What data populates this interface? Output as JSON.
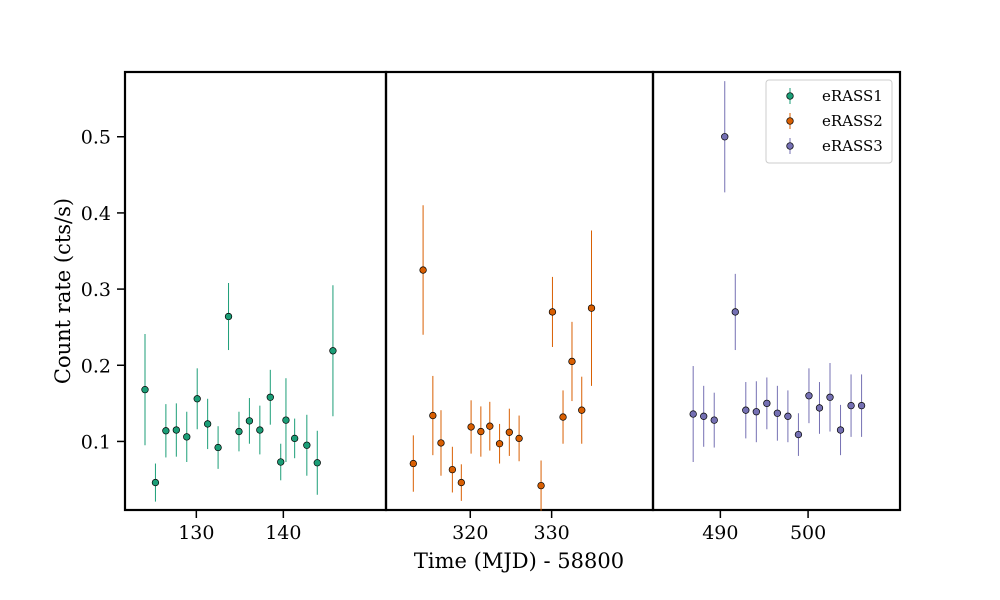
{
  "chart_data": {
    "type": "scatter",
    "xlabel": "Time (MJD) - 58800",
    "ylabel": "Count rate (cts/s)",
    "ylim": [
      0.01,
      0.585
    ],
    "yticks": [
      0.1,
      0.2,
      0.3,
      0.4,
      0.5
    ],
    "yticklabels": [
      "0.1",
      "0.2",
      "0.3",
      "0.4",
      "0.5"
    ],
    "grid": false,
    "legend_position": "top-right",
    "panels": [
      {
        "xlim": [
          124.1,
          149.5
        ],
        "xticks": [
          130,
          140
        ],
        "xticklabels": [
          "130",
          "140"
        ]
      },
      {
        "xlim": [
          312.1,
          340.0
        ],
        "xticks": [
          320,
          330
        ],
        "xticklabels": [
          "320",
          "330"
        ]
      },
      {
        "xlim": [
          484.6,
          508.2
        ],
        "xticks": [
          490,
          500
        ],
        "xticklabels": [
          "490",
          "500"
        ]
      }
    ],
    "series": [
      {
        "name": "eRASS1",
        "color": "#1b9e77",
        "panel": 0,
        "x": [
          124.1,
          125.3,
          126.5,
          127.7,
          128.9,
          130.1,
          131.3,
          132.5,
          133.7,
          134.9,
          136.1,
          137.3,
          138.5,
          139.7,
          140.3,
          141.3,
          142.7,
          143.9,
          145.7
        ],
        "y": [
          0.168,
          0.046,
          0.114,
          0.115,
          0.106,
          0.156,
          0.123,
          0.092,
          0.264,
          0.113,
          0.127,
          0.115,
          0.158,
          0.073,
          0.128,
          0.104,
          0.095,
          0.072,
          0.219
        ],
        "yerr": [
          0.073,
          0.025,
          0.035,
          0.035,
          0.033,
          0.04,
          0.033,
          0.028,
          0.044,
          0.026,
          0.03,
          0.032,
          0.036,
          0.024,
          0.055,
          0.026,
          0.04,
          0.042,
          0.086
        ]
      },
      {
        "name": "eRASS2",
        "color": "#d95f02",
        "panel": 1,
        "x": [
          313.0,
          314.2,
          315.4,
          316.4,
          317.8,
          318.9,
          320.1,
          321.3,
          322.4,
          323.6,
          324.8,
          326.0,
          328.7,
          330.1,
          331.4,
          332.5,
          333.7,
          334.9
        ],
        "y": [
          0.071,
          0.325,
          0.134,
          0.098,
          0.063,
          0.046,
          0.119,
          0.113,
          0.12,
          0.097,
          0.112,
          0.104,
          0.042,
          0.27,
          0.132,
          0.205,
          0.141,
          0.275
        ],
        "yerr": [
          0.037,
          0.085,
          0.052,
          0.043,
          0.03,
          0.024,
          0.035,
          0.033,
          0.032,
          0.026,
          0.031,
          0.03,
          0.033,
          0.046,
          0.035,
          0.052,
          0.044,
          0.102
        ]
      },
      {
        "name": "eRASS3",
        "color": "#7570b3",
        "panel": 2,
        "x": [
          486.9,
          488.1,
          489.3,
          490.5,
          491.7,
          492.9,
          494.1,
          495.3,
          496.5,
          497.7,
          498.9,
          500.1,
          501.3,
          502.5,
          503.7,
          504.9,
          506.1
        ],
        "y": [
          0.136,
          0.133,
          0.128,
          0.5,
          0.27,
          0.141,
          0.139,
          0.15,
          0.137,
          0.133,
          0.109,
          0.16,
          0.144,
          0.158,
          0.115,
          0.147,
          0.147
        ],
        "yerr": [
          0.063,
          0.04,
          0.036,
          0.073,
          0.05,
          0.037,
          0.04,
          0.034,
          0.036,
          0.034,
          0.028,
          0.036,
          0.034,
          0.045,
          0.033,
          0.041,
          0.041
        ]
      }
    ]
  }
}
